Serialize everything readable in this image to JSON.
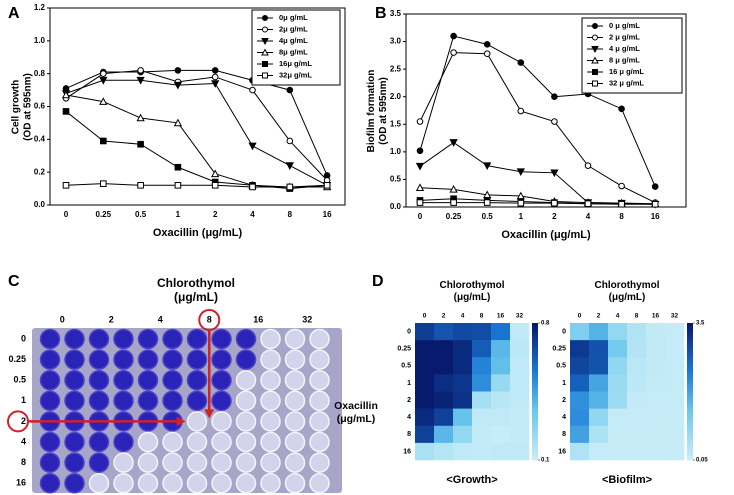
{
  "chart_data": [
    {
      "type": "line",
      "panel": "A",
      "ylabel": "Cell growth (OD at 595nm)",
      "xlabel": "Oxacillin (μg/mL)",
      "categories": [
        "0",
        "0.25",
        "0.5",
        "1",
        "2",
        "4",
        "8",
        "16"
      ],
      "ylim": [
        0,
        1.2
      ],
      "yticks": [
        {
          "value": 0,
          "label": "0.0"
        },
        0.2,
        0.4,
        0.6,
        0.8,
        {
          "value": 1,
          "label": "1.0"
        },
        1.2
      ],
      "legend": "upper right",
      "series": [
        {
          "name": "0μ g/mL",
          "color": "#000000",
          "marker": "circle-filled",
          "values": [
            0.71,
            0.81,
            0.81,
            0.82,
            0.82,
            0.76,
            0.7,
            0.18
          ]
        },
        {
          "name": "2μ g/mL",
          "color": "#000000",
          "marker": "circle-open",
          "values": [
            0.65,
            0.8,
            0.82,
            0.75,
            0.78,
            0.7,
            0.39,
            0.15
          ]
        },
        {
          "name": "4μ g/mL",
          "color": "#000000",
          "marker": "triangle-down-filled",
          "values": [
            0.68,
            0.76,
            0.76,
            0.73,
            0.74,
            0.36,
            0.24,
            0.12
          ]
        },
        {
          "name": "8μ g/mL",
          "color": "#000000",
          "marker": "triangle-up-open",
          "values": [
            0.67,
            0.63,
            0.53,
            0.5,
            0.19,
            0.12,
            0.11,
            0.11
          ]
        },
        {
          "name": "16μ g/mL",
          "color": "#000000",
          "marker": "square-filled",
          "values": [
            0.57,
            0.39,
            0.37,
            0.23,
            0.14,
            0.12,
            0.1,
            0.12
          ]
        },
        {
          "name": "32μ g/mL",
          "color": "#000000",
          "marker": "square-open",
          "values": [
            0.12,
            0.13,
            0.12,
            0.12,
            0.12,
            0.11,
            0.11,
            0.12
          ]
        }
      ]
    },
    {
      "type": "line",
      "panel": "B",
      "ylabel": "Biofilm formation (OD at 595nm)",
      "xlabel": "Oxacillin (μg/mL)",
      "categories": [
        "0",
        "0.25",
        "0.5",
        "1",
        "2",
        "4",
        "8",
        "16"
      ],
      "ylim": [
        0,
        3.5
      ],
      "yticks": [
        {
          "value": 0,
          "label": "0.0"
        },
        0.5,
        {
          "value": 1,
          "label": "1.0"
        },
        1.5,
        {
          "value": 2,
          "label": "2.0"
        },
        2.5,
        {
          "value": 3,
          "label": "3.0"
        },
        3.5
      ],
      "legend": "upper right",
      "series": [
        {
          "name": "0 μ g/mL",
          "color": "#000000",
          "marker": "circle-filled",
          "values": [
            1.02,
            3.1,
            2.95,
            2.62,
            2.0,
            2.05,
            1.78,
            0.37
          ]
        },
        {
          "name": "2 μ g/mL",
          "color": "#000000",
          "marker": "circle-open",
          "values": [
            1.55,
            2.8,
            2.78,
            1.74,
            1.55,
            0.75,
            0.38,
            0.08
          ]
        },
        {
          "name": "4 μ g/mL",
          "color": "#000000",
          "marker": "triangle-down-filled",
          "values": [
            0.74,
            1.17,
            0.75,
            0.64,
            0.62,
            0.08,
            0.07,
            0.05
          ]
        },
        {
          "name": "8 μ g/mL",
          "color": "#000000",
          "marker": "triangle-up-open",
          "values": [
            0.35,
            0.32,
            0.22,
            0.2,
            0.1,
            0.08,
            0.07,
            0.06
          ]
        },
        {
          "name": "16 μ g/mL",
          "color": "#000000",
          "marker": "square-filled",
          "values": [
            0.12,
            0.15,
            0.12,
            0.1,
            0.08,
            0.06,
            0.06,
            0.05
          ]
        },
        {
          "name": "32 μ g/mL",
          "color": "#000000",
          "marker": "square-open",
          "values": [
            0.08,
            0.08,
            0.08,
            0.07,
            0.07,
            0.06,
            0.05,
            0.05
          ]
        }
      ]
    },
    {
      "type": "heatmap",
      "panel": "D",
      "title": "Chlorothymol (μg/mL)",
      "ylabel": "Oxacillin (μg/mL)",
      "caption": "<Growth>",
      "columns": [
        "0",
        "2",
        "4",
        "8",
        "16",
        "32"
      ],
      "rows": [
        "0",
        "0.25",
        "0.5",
        "1",
        "2",
        "4",
        "8",
        "16"
      ],
      "clim": [
        0.1,
        0.8
      ],
      "colorbar_ticks": [
        0.8,
        0.1
      ],
      "values": [
        [
          0.71,
          0.65,
          0.68,
          0.67,
          0.57,
          0.12
        ],
        [
          0.81,
          0.8,
          0.76,
          0.63,
          0.39,
          0.13
        ],
        [
          0.81,
          0.82,
          0.76,
          0.53,
          0.37,
          0.12
        ],
        [
          0.82,
          0.75,
          0.73,
          0.5,
          0.23,
          0.12
        ],
        [
          0.82,
          0.78,
          0.74,
          0.19,
          0.14,
          0.12
        ],
        [
          0.76,
          0.7,
          0.36,
          0.12,
          0.12,
          0.11
        ],
        [
          0.7,
          0.39,
          0.24,
          0.11,
          0.1,
          0.11
        ],
        [
          0.18,
          0.15,
          0.12,
          0.11,
          0.12,
          0.12
        ]
      ]
    },
    {
      "type": "heatmap",
      "title": "Chlorothymol (μg/mL)",
      "caption": "<Biofilm>",
      "columns": [
        "0",
        "2",
        "4",
        "8",
        "16",
        "32"
      ],
      "rows": [
        "0",
        "0.25",
        "0.5",
        "1",
        "2",
        "4",
        "8",
        "16"
      ],
      "clim": [
        0.05,
        3.5
      ],
      "colorbar_ticks": [
        3.5,
        0.05
      ],
      "values": [
        [
          1.02,
          1.55,
          0.74,
          0.35,
          0.12,
          0.08
        ],
        [
          3.1,
          2.8,
          1.17,
          0.32,
          0.15,
          0.08
        ],
        [
          2.95,
          2.78,
          0.75,
          0.22,
          0.12,
          0.08
        ],
        [
          2.62,
          1.74,
          0.64,
          0.2,
          0.1,
          0.07
        ],
        [
          2.0,
          1.55,
          0.62,
          0.1,
          0.08,
          0.07
        ],
        [
          2.05,
          0.75,
          0.08,
          0.08,
          0.06,
          0.06
        ],
        [
          1.78,
          0.38,
          0.07,
          0.07,
          0.06,
          0.05
        ],
        [
          0.37,
          0.08,
          0.05,
          0.06,
          0.05,
          0.05
        ]
      ]
    }
  ],
  "panel_c": {
    "label": "C",
    "title": "Chlorothymol (μg/mL)",
    "columns": [
      "0",
      "2",
      "4",
      "8",
      "16",
      "32"
    ],
    "rows": [
      "0",
      "0.25",
      "0.5",
      "1",
      "2",
      "4",
      "8",
      "16"
    ]
  }
}
